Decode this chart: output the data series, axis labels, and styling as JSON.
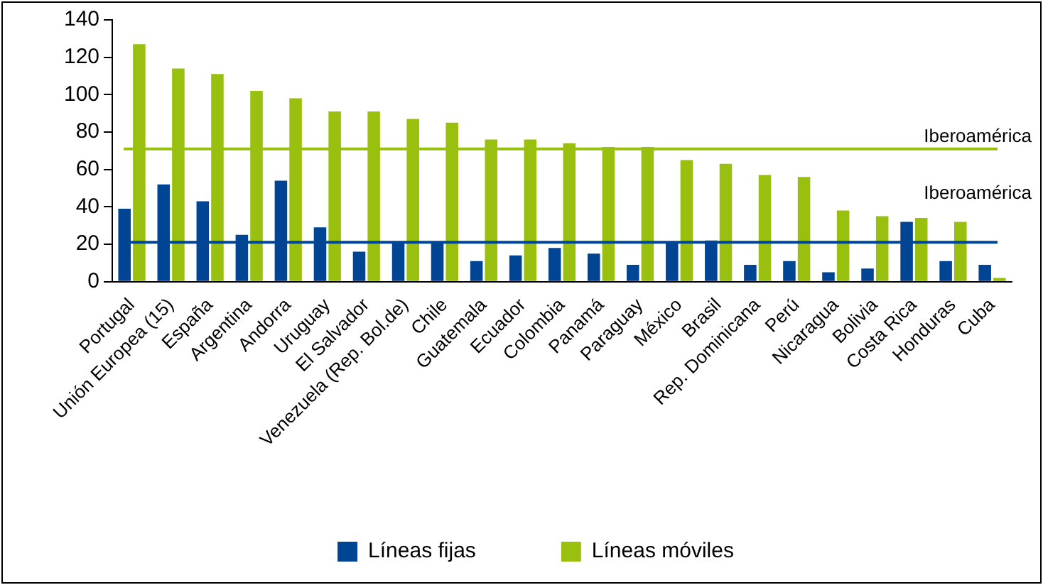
{
  "chart_data": {
    "type": "bar",
    "categories": [
      "Portugal",
      "Unión Europea (15)",
      "España",
      "Argentina",
      "Andorra",
      "Uruguay",
      "El Salvador",
      "Venezuela (Rep. Bol.de)",
      "Chile",
      "Guatemala",
      "Ecuador",
      "Colombia",
      "Panamá",
      "Paraguay",
      "México",
      "Brasil",
      "Rep. Dominicana",
      "Perú",
      "Nicaragua",
      "Bolivia",
      "Costa Rica",
      "Honduras",
      "Cuba"
    ],
    "series": [
      {
        "name": "Líneas fijas",
        "color": "#004494",
        "values": [
          39,
          52,
          43,
          25,
          54,
          29,
          16,
          21,
          21,
          11,
          14,
          18,
          15,
          9,
          21,
          22,
          9,
          11,
          5,
          7,
          32,
          11,
          9
        ]
      },
      {
        "name": "Líneas móviles",
        "color": "#99bf0f",
        "values": [
          127,
          114,
          111,
          102,
          98,
          91,
          91,
          87,
          85,
          76,
          76,
          74,
          72,
          72,
          65,
          63,
          57,
          56,
          38,
          35,
          34,
          32,
          2
        ]
      }
    ],
    "ylim": [
      0,
      140
    ],
    "yticks": [
      0,
      20,
      40,
      60,
      80,
      100,
      120,
      140
    ],
    "ref_lines": [
      {
        "axis": "y",
        "value": 71,
        "label": "Iberoamérica",
        "color": "#99bf0f"
      },
      {
        "axis": "y",
        "value": 21,
        "label": "Iberoamérica",
        "color": "#004494"
      }
    ],
    "legend": "bottom",
    "grid": false
  }
}
